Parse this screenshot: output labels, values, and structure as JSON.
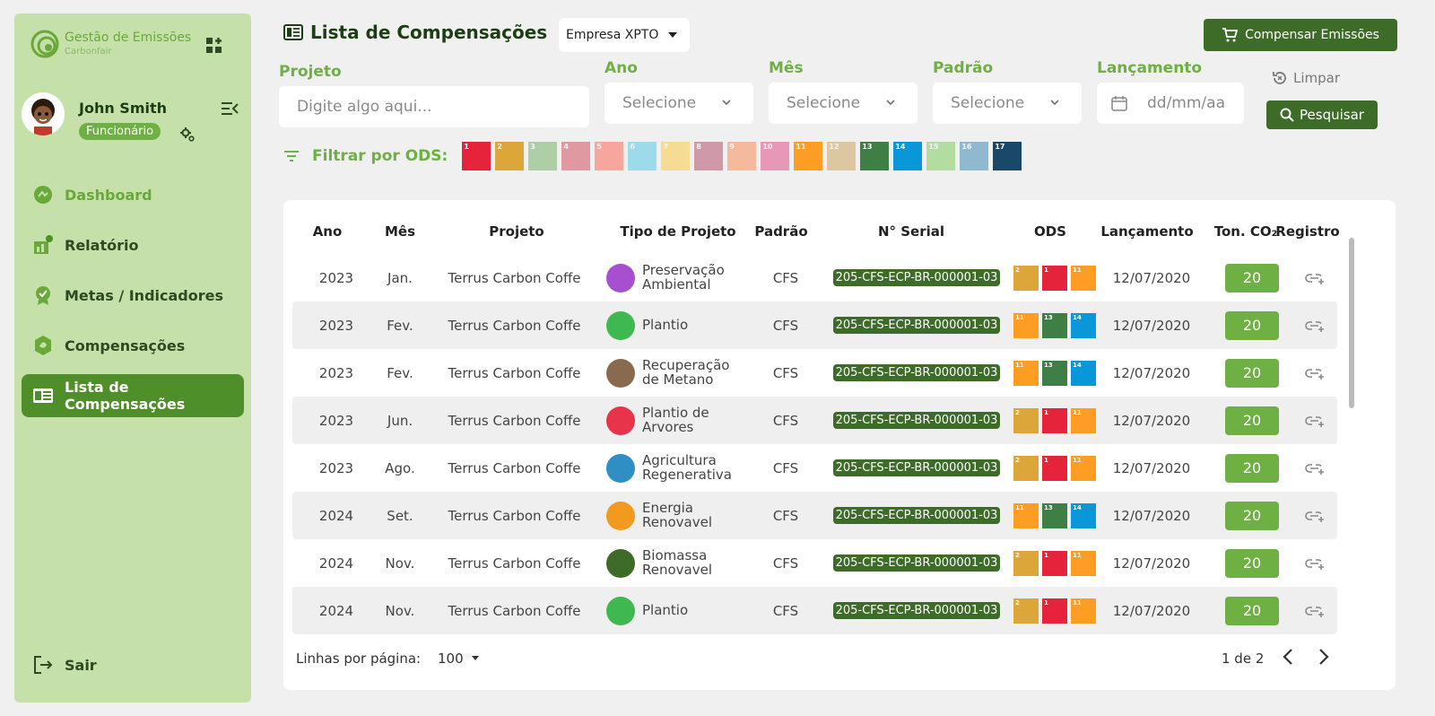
{
  "sidebar": {
    "brand_title": "Gestão de Emissões",
    "brand_sub": "Carbonfair",
    "user_name": "John Smith",
    "user_role": "Funcionário",
    "nav": [
      {
        "label": "Dashboard",
        "icon": "dashboard-icon"
      },
      {
        "label": "Relatório",
        "icon": "report-icon"
      },
      {
        "label": "Metas / Indicadores",
        "icon": "goals-icon"
      },
      {
        "label": "Compensações",
        "icon": "compensation-icon"
      },
      {
        "label": "Lista de Compensações",
        "icon": "list-icon",
        "active": true
      }
    ],
    "logout": "Sair"
  },
  "header": {
    "title": "Lista de Compensações",
    "company": "Empresa XPTO",
    "compensate_btn": "Compensar Emissões"
  },
  "filters": {
    "projeto_label": "Projeto",
    "projeto_placeholder": "Digite algo aqui...",
    "ano_label": "Ano",
    "ano_value": "Selecione",
    "mes_label": "Mês",
    "mes_value": "Selecione",
    "padrao_label": "Padrão",
    "padrao_value": "Selecione",
    "lancamento_label": "Lançamento",
    "lancamento_placeholder": "dd/mm/aa",
    "clear": "Limpar",
    "search": "Pesquisar",
    "ods_label": "Filtrar por ODS:",
    "ods": [
      {
        "n": "1",
        "color": "#e5243b",
        "on": true
      },
      {
        "n": "2",
        "color": "#dda63a",
        "on": true
      },
      {
        "n": "3",
        "color": "#4c9f38",
        "on": false
      },
      {
        "n": "4",
        "color": "#c5192d",
        "on": false
      },
      {
        "n": "5",
        "color": "#ff3a21",
        "on": false
      },
      {
        "n": "6",
        "color": "#26bde2",
        "on": false
      },
      {
        "n": "7",
        "color": "#fcc30b",
        "on": false
      },
      {
        "n": "8",
        "color": "#a21942",
        "on": false
      },
      {
        "n": "9",
        "color": "#fd6925",
        "on": false
      },
      {
        "n": "10",
        "color": "#dd1367",
        "on": false
      },
      {
        "n": "11",
        "color": "#fd9d24",
        "on": true
      },
      {
        "n": "12",
        "color": "#bf8b2e",
        "on": false
      },
      {
        "n": "13",
        "color": "#3f7e44",
        "on": true
      },
      {
        "n": "14",
        "color": "#0a97d9",
        "on": true
      },
      {
        "n": "15",
        "color": "#56c02b",
        "on": false
      },
      {
        "n": "16",
        "color": "#00689d",
        "on": false
      },
      {
        "n": "17",
        "color": "#19486a",
        "on": true
      }
    ]
  },
  "table": {
    "headers": [
      "Ano",
      "Mês",
      "Projeto",
      "Tipo de Projeto",
      "Padrão",
      "N° Serial",
      "ODS",
      "Lançamento",
      "Ton. CO₂",
      "Registro"
    ],
    "rows": [
      {
        "ano": "2023",
        "mes": "Jan.",
        "projeto": "Terrus Carbon Coffe",
        "tipo1": "Preservação",
        "tipo2": "Ambiental",
        "tipo_color": "#a84fd0",
        "padrao": "CFS",
        "serial": "205-CFS-ECP-BR-000001-03",
        "ods": [
          "2",
          "1",
          "11"
        ],
        "lancamento": "12/07/2020",
        "ton": "20"
      },
      {
        "ano": "2023",
        "mes": "Fev.",
        "projeto": "Terrus Carbon Coffe",
        "tipo1": "Plantio",
        "tipo2": "",
        "tipo_color": "#3fb94f",
        "padrao": "CFS",
        "serial": "205-CFS-ECP-BR-000001-03",
        "ods": [
          "11",
          "13",
          "14"
        ],
        "lancamento": "12/07/2020",
        "ton": "20"
      },
      {
        "ano": "2023",
        "mes": "Fev.",
        "projeto": "Terrus Carbon Coffe",
        "tipo1": "Recuperação",
        "tipo2": "de Metano",
        "tipo_color": "#8a6a4e",
        "padrao": "CFS",
        "serial": "205-CFS-ECP-BR-000001-03",
        "ods": [
          "11",
          "13",
          "14"
        ],
        "lancamento": "12/07/2020",
        "ton": "20"
      },
      {
        "ano": "2023",
        "mes": "Jun.",
        "projeto": "Terrus Carbon Coffe",
        "tipo1": "Plantio de",
        "tipo2": "Arvores",
        "tipo_color": "#e8344a",
        "padrao": "CFS",
        "serial": "205-CFS-ECP-BR-000001-03",
        "ods": [
          "2",
          "1",
          "11"
        ],
        "lancamento": "12/07/2020",
        "ton": "20"
      },
      {
        "ano": "2023",
        "mes": "Ago.",
        "projeto": "Terrus Carbon Coffe",
        "tipo1": "Agricultura",
        "tipo2": "Regenerativa",
        "tipo_color": "#2f8fc4",
        "padrao": "CFS",
        "serial": "205-CFS-ECP-BR-000001-03",
        "ods": [
          "2",
          "1",
          "11"
        ],
        "lancamento": "12/07/2020",
        "ton": "20"
      },
      {
        "ano": "2024",
        "mes": "Set.",
        "projeto": "Terrus Carbon Coffe",
        "tipo1": "Energia",
        "tipo2": "Renovavel",
        "tipo_color": "#f29a1e",
        "padrao": "CFS",
        "serial": "205-CFS-ECP-BR-000001-03",
        "ods": [
          "11",
          "13",
          "14"
        ],
        "lancamento": "12/07/2020",
        "ton": "20"
      },
      {
        "ano": "2024",
        "mes": "Nov.",
        "projeto": "Terrus Carbon Coffe",
        "tipo1": "Biomassa",
        "tipo2": "Renovavel",
        "tipo_color": "#3d6b28",
        "padrao": "CFS",
        "serial": "205-CFS-ECP-BR-000001-03",
        "ods": [
          "2",
          "1",
          "11"
        ],
        "lancamento": "12/07/2020",
        "ton": "20"
      },
      {
        "ano": "2024",
        "mes": "Nov.",
        "projeto": "Terrus Carbon Coffe",
        "tipo1": "Plantio",
        "tipo2": "",
        "tipo_color": "#3fb94f",
        "padrao": "CFS",
        "serial": "205-CFS-ECP-BR-000001-03",
        "ods": [
          "2",
          "1",
          "11"
        ],
        "lancamento": "12/07/2020",
        "ton": "20"
      }
    ]
  },
  "footer": {
    "rows_label": "Linhas por página:",
    "rows_value": "100",
    "page": "1 de 2"
  }
}
